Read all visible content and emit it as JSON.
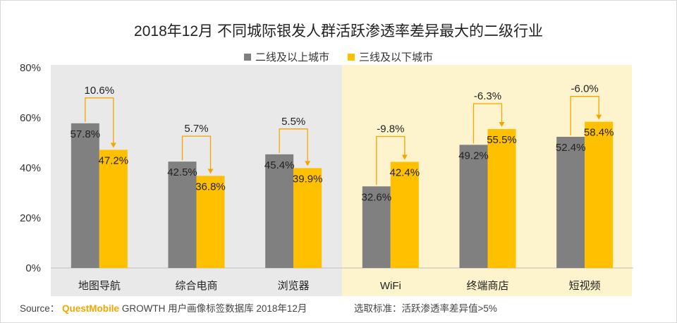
{
  "chart_data": {
    "type": "bar",
    "title": "2018年12月 不同城际银发人群活跃渗透率差异最大的二级行业",
    "categories": [
      "地图导航",
      "综合电商",
      "浏览器",
      "WiFi",
      "终端商店",
      "短视频"
    ],
    "series": [
      {
        "name": "二线及以上城市",
        "color": "#808080",
        "values": [
          57.8,
          42.5,
          45.4,
          32.6,
          49.2,
          52.4
        ],
        "labels": [
          "57.8%",
          "42.5%",
          "45.4%",
          "32.6%",
          "49.2%",
          "52.4%"
        ]
      },
      {
        "name": "三线及以下城市",
        "color": "#ffc000",
        "values": [
          47.2,
          36.8,
          39.9,
          42.4,
          55.5,
          58.4
        ],
        "labels": [
          "47.2%",
          "36.8%",
          "39.9%",
          "42.4%",
          "55.5%",
          "58.4%"
        ]
      }
    ],
    "differences": [
      "10.6%",
      "5.7%",
      "5.5%",
      "-9.8%",
      "-6.3%",
      "-6.0%"
    ],
    "ylim": [
      0,
      80
    ],
    "yticks": [
      0,
      20,
      40,
      60,
      80
    ],
    "ytick_labels": [
      "0%",
      "20%",
      "40%",
      "60%",
      "80%"
    ],
    "xlabel": "",
    "ylabel": "",
    "legend": "top-center",
    "grid": false,
    "panel_colors": {
      "left": "#e9e9e9",
      "right": "#fdf3cc"
    },
    "arrow_color": "#f5a500"
  },
  "footer": {
    "source_prefix": "Source：",
    "brand": "QuestMobile",
    "source_suffix": " GROWTH 用户画像标签数据库 2018年12月",
    "criteria": "选取标准：活跃渗透率差异值>5%"
  }
}
